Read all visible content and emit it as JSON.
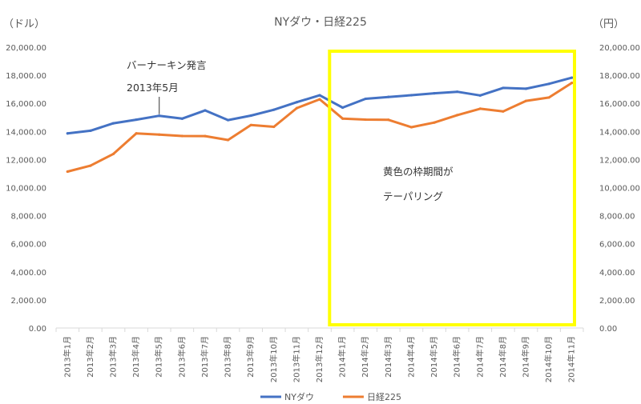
{
  "chart_data": {
    "type": "line",
    "title": "NYダウ・日経225",
    "y_unit_left": "（ドル）",
    "y_unit_right": "（円）",
    "y_ticks": [
      "0.00",
      "2,000.00",
      "4,000.00",
      "6,000.00",
      "8,000.00",
      "10,000.00",
      "12,000.00",
      "14,000.00",
      "16,000.00",
      "18,000.00",
      "20,000.00"
    ],
    "ylim": [
      0,
      20000
    ],
    "grid": false,
    "legend_position": "bottom",
    "categories": [
      "2013年1月",
      "2013年2月",
      "2013年3月",
      "2013年4月",
      "2013年5月",
      "2013年6月",
      "2013年7月",
      "2013年8月",
      "2013年9月",
      "2013年10月",
      "2013年11月",
      "2013年12月",
      "2014年1月",
      "2014年2月",
      "2014年3月",
      "2014年4月",
      "2014年5月",
      "2014年6月",
      "2014年7月",
      "2014年8月",
      "2014年9月",
      "2014年10月",
      "2014年11月"
    ],
    "series": [
      {
        "name": "NYダウ",
        "color": "#4472c4",
        "axis": "left",
        "values": [
          13860,
          14054,
          14579,
          14840,
          15116,
          14910,
          15500,
          14810,
          15130,
          15546,
          16086,
          16577,
          15699,
          16322,
          16458,
          16581,
          16717,
          16827,
          16563,
          17098,
          17043,
          17391,
          17828
        ]
      },
      {
        "name": "日経225",
        "color": "#ed7d31",
        "axis": "right",
        "values": [
          11139,
          11559,
          12398,
          13861,
          13775,
          13677,
          13668,
          13389,
          14456,
          14328,
          15662,
          16291,
          14915,
          14841,
          14828,
          14304,
          14632,
          15162,
          15621,
          15425,
          16174,
          16414,
          17460
        ]
      }
    ],
    "annotations": [
      {
        "text": "バーナーキン発言",
        "category_index": 4
      },
      {
        "text": "2013年5月",
        "category_index": 4
      },
      {
        "text": "黄色の枠期間が"
      },
      {
        "text": "テーパリング"
      }
    ],
    "highlight_box": {
      "from_category": "2014年1月",
      "to_category": "2014年11月",
      "color": "#ffff00"
    }
  }
}
